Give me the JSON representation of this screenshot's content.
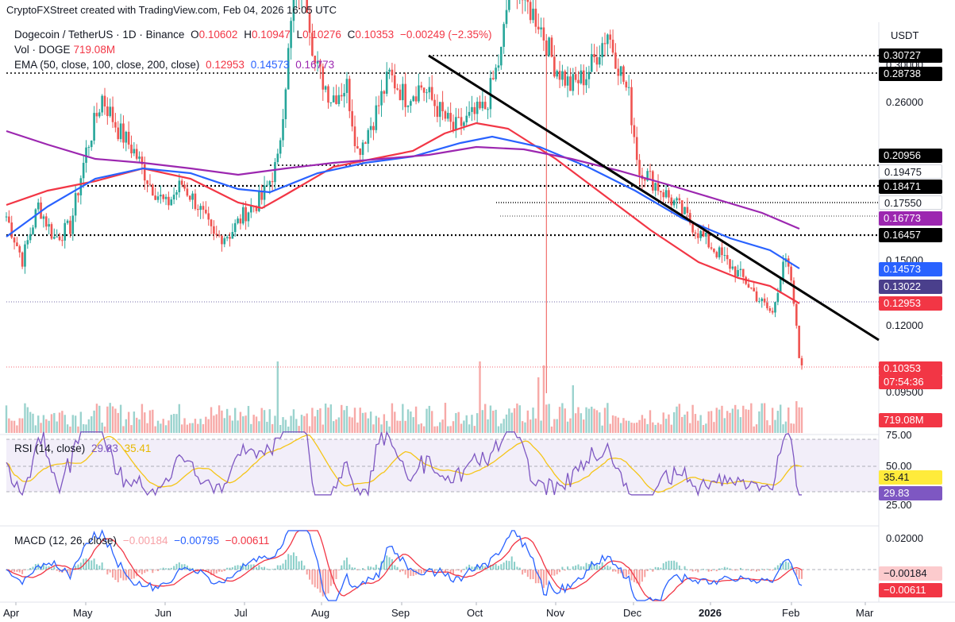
{
  "header": {
    "credit": "CryptoFXStreet created with TradingView.com, Feb 04, 2026 16:05 UTC"
  },
  "legend": {
    "symbol": "Dogecoin / TetherUS · 1D · Binance",
    "open_label": "O",
    "open": "0.10602",
    "high_label": "H",
    "high": "0.10947",
    "low_label": "L",
    "low": "0.10276",
    "close_label": "C",
    "close": "0.10353",
    "change": "−0.00249 (−2.35%)",
    "vol_label": "Vol · DOGE",
    "vol_value": "719.08M",
    "ema_label": "EMA (50, close, 100, close, 200, close)",
    "ema50": "0.12953",
    "ema100": "0.14573",
    "ema200": "0.16773",
    "rsi_label": "RSI (14, close)",
    "rsi_value": "29.83",
    "rsi_ma": "35.41",
    "macd_label": "MACD (12, 26, close)",
    "macd_hist": "−0.00184",
    "macd_line": "−0.00795",
    "macd_signal": "−0.00611"
  },
  "axis": {
    "unit": "USDT",
    "price_plain": [
      "0.30000",
      "0.26000",
      "0.15000",
      "0.12000",
      "0.09500"
    ],
    "price_tags": [
      {
        "text": "0.30727",
        "bg": "#000000",
        "fg": "#ffffff"
      },
      {
        "text": "0.28738",
        "bg": "#000000",
        "fg": "#ffffff"
      },
      {
        "text": "0.20956",
        "bg": "#000000",
        "fg": "#ffffff"
      },
      {
        "text": "0.19475",
        "bg": "#ffffff",
        "fg": "#131722"
      },
      {
        "text": "0.18471",
        "bg": "#000000",
        "fg": "#ffffff"
      },
      {
        "text": "0.17550",
        "bg": "#ffffff",
        "fg": "#131722"
      },
      {
        "text": "0.16773",
        "bg": "#9c27b0",
        "fg": "#ffffff"
      },
      {
        "text": "0.16457",
        "bg": "#000000",
        "fg": "#ffffff"
      },
      {
        "text": "0.14573",
        "bg": "#2962ff",
        "fg": "#ffffff"
      },
      {
        "text": "0.13022",
        "bg": "#4a3f8c",
        "fg": "#ffffff"
      },
      {
        "text": "0.12953",
        "bg": "#f23645",
        "fg": "#ffffff"
      },
      {
        "text": "0.10353",
        "bg": "#f23645",
        "fg": "#ffffff"
      },
      {
        "text": "07:54:36",
        "bg": "#f23645",
        "fg": "#ffffff"
      },
      {
        "text": "719.08M",
        "bg": "#f23645",
        "fg": "#ffffff"
      }
    ],
    "rsi_ticks": [
      "75.00",
      "50.00",
      "25.00"
    ],
    "rsi_tags": [
      {
        "text": "35.41",
        "bg": "#ffeb3b",
        "fg": "#131722"
      },
      {
        "text": "29.83",
        "bg": "#7e57c2",
        "fg": "#ffffff"
      }
    ],
    "macd_ticks": [
      "0.02000"
    ],
    "macd_tags": [
      {
        "text": "−0.00184",
        "bg": "#fccbcd",
        "fg": "#131722"
      },
      {
        "text": "−0.00611",
        "bg": "#f23645",
        "fg": "#ffffff"
      }
    ],
    "x_labels": [
      "Apr",
      "May",
      "Jun",
      "Jul",
      "Aug",
      "Sep",
      "Oct",
      "Nov",
      "Dec",
      "2026",
      "Feb",
      "Mar"
    ]
  },
  "colors": {
    "up": "#26a69a",
    "down": "#ef5350",
    "ema50": "#f23645",
    "ema100": "#2962ff",
    "ema200": "#9c27b0",
    "rsi": "#7e57c2",
    "rsi_ma": "#f5c518",
    "macd": "#2962ff",
    "signal": "#f23645"
  },
  "chart_data": {
    "type": "candlestick",
    "pair": "DOGE/USDT",
    "interval": "1D",
    "monthly_approx_close": {
      "x": [
        "Apr 2025",
        "May 2025",
        "Jun 2025",
        "Jul 2025",
        "Aug 2025",
        "Sep 2025",
        "Oct 2025",
        "Nov 2025",
        "Dec 2025",
        "Jan 2026",
        "Feb 2026"
      ],
      "close": [
        0.168,
        0.205,
        0.16,
        0.215,
        0.22,
        0.24,
        0.19,
        0.15,
        0.125,
        0.13,
        0.1035
      ]
    },
    "horizontal_levels": [
      0.30727,
      0.28738,
      0.20956,
      0.18471,
      0.16457,
      0.1755
    ],
    "trendline": {
      "from": {
        "x": "Sep 2025",
        "y": 0.30727
      },
      "to": {
        "x": "Feb 2026",
        "y": 0.12
      }
    },
    "ema": {
      "ema50": 0.12953,
      "ema100": 0.14573,
      "ema200": 0.16773
    },
    "rsi": {
      "value": 29.83,
      "ma": 35.41
    },
    "macd": {
      "hist": -0.00184,
      "macd": -0.00795,
      "signal": -0.00611
    }
  }
}
